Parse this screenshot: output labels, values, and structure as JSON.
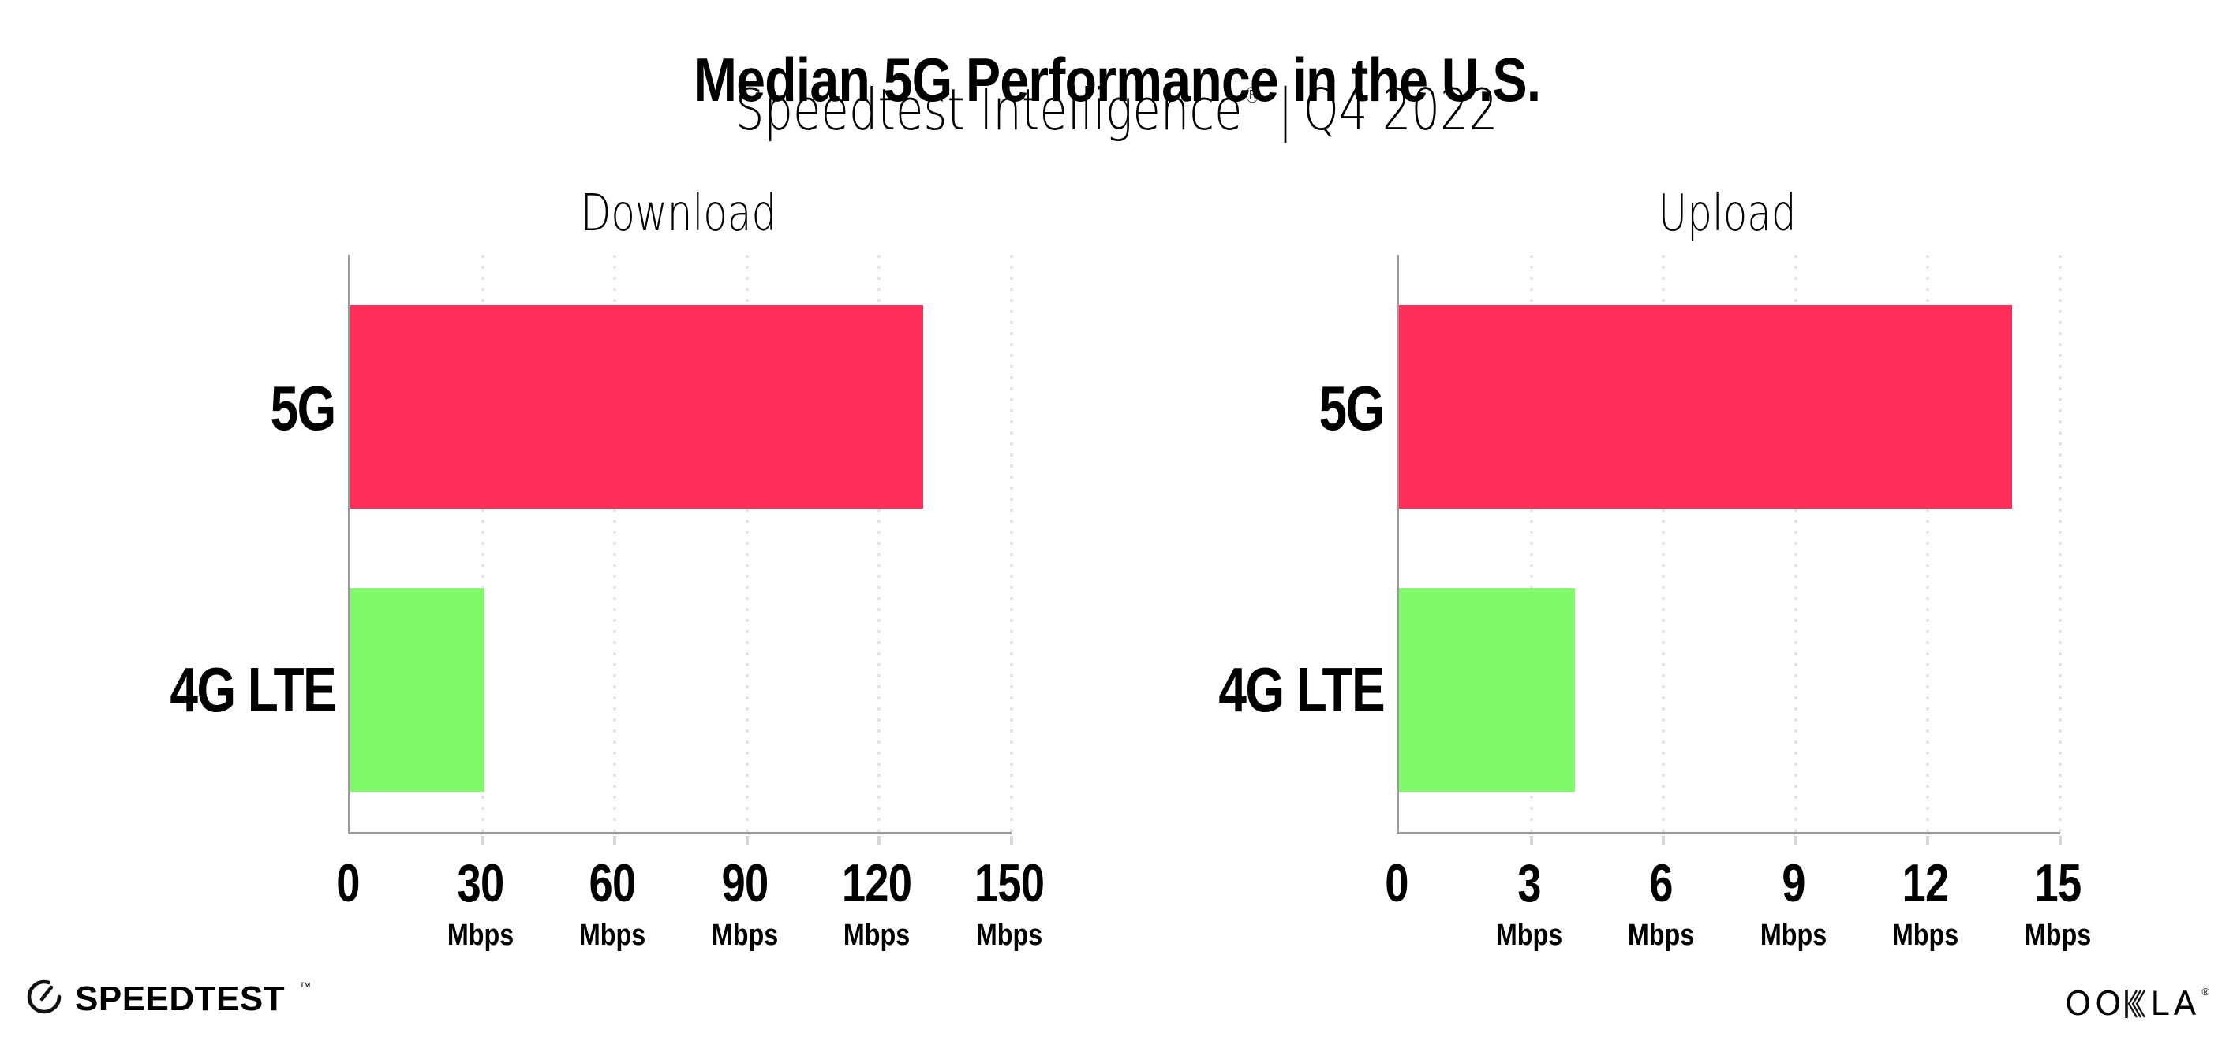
{
  "header": {
    "title": "Median 5G Performance in the U.S.",
    "subtitle_brand": "Speedtest Intelligence",
    "subtitle_reg": "®",
    "subtitle_sep": "|",
    "subtitle_period": "Q4 2022"
  },
  "chart_data": [
    {
      "type": "bar",
      "orientation": "horizontal",
      "title": "Download",
      "categories": [
        "5G",
        "4G LTE"
      ],
      "values": [
        130,
        30.5
      ],
      "unit": "Mbps",
      "xlabel": "Mbps",
      "ylabel": "",
      "xlim": [
        0,
        150
      ],
      "xticks": [
        0,
        30,
        60,
        90,
        120,
        150
      ],
      "grid": true,
      "legend": "none"
    },
    {
      "type": "bar",
      "orientation": "horizontal",
      "title": "Upload",
      "categories": [
        "5G",
        "4G LTE"
      ],
      "values": [
        13.9,
        4
      ],
      "unit": "Mbps",
      "xlabel": "Mbps",
      "ylabel": "",
      "xlim": [
        0,
        15
      ],
      "xticks": [
        0,
        3,
        6,
        9,
        12,
        15
      ],
      "grid": true,
      "legend": "none"
    }
  ],
  "colors": {
    "series": [
      "#FF2D57",
      "#80FA6A"
    ],
    "axis": "#9b9b9b",
    "gridline": "#e3e3ef",
    "text": "#000000",
    "background": "#ffffff"
  },
  "footer": {
    "speedtest_label": "SPEEDTEST",
    "speedtest_tm": "™",
    "ookla_left": "OO",
    "ookla_right": "LA",
    "ookla_reg": "®"
  }
}
